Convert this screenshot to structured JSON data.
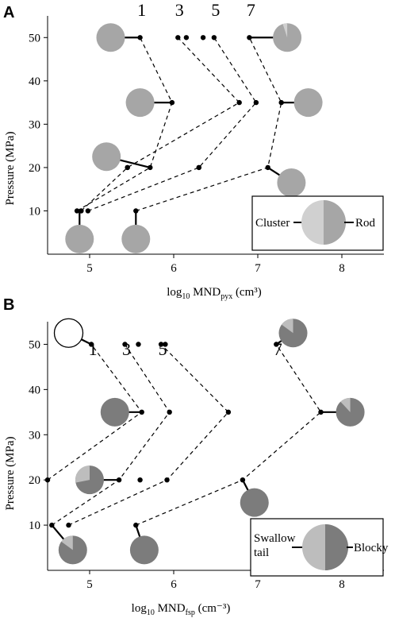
{
  "colors": {
    "rod": "#a6a6a6",
    "cluster": "#d0d0d0",
    "blocky": "#7c7c7c",
    "swallow": "#bdbdbd",
    "axis": "#000000"
  },
  "chart_data": [
    {
      "panel": "A",
      "type": "scatter",
      "xlabel": {
        "main": "log",
        "sub1": "10",
        "mid": " MND",
        "sub2": "pyx",
        "tail": " (cm³)"
      },
      "ylabel": "Pressure (MPa)",
      "xlim": [
        4.5,
        8.5
      ],
      "ylim": [
        0,
        55
      ],
      "xticks": [
        "5",
        "6",
        "7",
        "8"
      ],
      "yticks": [
        "10",
        "20",
        "30",
        "40",
        "50"
      ],
      "series": [
        {
          "name": "1",
          "points": [
            {
              "x": 4.85,
              "y": 10
            },
            {
              "x": 5.72,
              "y": 20
            },
            {
              "x": 5.98,
              "y": 35
            },
            {
              "x": 5.6,
              "y": 50
            }
          ]
        },
        {
          "name": "3",
          "points": [
            {
              "x": 4.9,
              "y": 10
            },
            {
              "x": 5.45,
              "y": 20
            },
            {
              "x": 6.78,
              "y": 35
            },
            {
              "x": 6.05,
              "y": 50
            }
          ]
        },
        {
          "name": "5",
          "points": [
            {
              "x": 4.98,
              "y": 10
            },
            {
              "x": 6.3,
              "y": 20
            },
            {
              "x": 6.98,
              "y": 35
            },
            {
              "x": 6.48,
              "y": 50
            }
          ]
        },
        {
          "name": "7",
          "points": [
            {
              "x": 5.55,
              "y": 10
            },
            {
              "x": 7.12,
              "y": 20
            },
            {
              "x": 7.28,
              "y": 35
            },
            {
              "x": 6.9,
              "y": 50
            }
          ]
        }
      ],
      "extra_points": [
        {
          "x": 5.45,
          "y": 20
        },
        {
          "x": 6.3,
          "y": 20
        },
        {
          "x": 6.15,
          "y": 50
        },
        {
          "x": 6.35,
          "y": 50
        }
      ],
      "pies": [
        {
          "x": 5.25,
          "y": 50,
          "attach": {
            "x": 5.6,
            "y": 50
          },
          "minor_fraction": 0
        },
        {
          "x": 5.6,
          "y": 35,
          "attach": {
            "x": 5.98,
            "y": 35
          },
          "minor_fraction": 0
        },
        {
          "x": 5.2,
          "y": 22.5,
          "attach": {
            "x": 5.72,
            "y": 20
          },
          "minor_fraction": 0
        },
        {
          "x": 4.88,
          "y": 3.5,
          "attach": {
            "x": 4.88,
            "y": 10
          },
          "minor_fraction": 0
        },
        {
          "x": 5.55,
          "y": 3.5,
          "attach": {
            "x": 5.55,
            "y": 10
          },
          "minor_fraction": 0
        },
        {
          "x": 7.35,
          "y": 50,
          "attach": {
            "x": 6.9,
            "y": 50
          },
          "minor_fraction": 0.05
        },
        {
          "x": 7.6,
          "y": 35,
          "attach": {
            "x": 7.28,
            "y": 35
          },
          "minor_fraction": 0
        },
        {
          "x": 7.4,
          "y": 16.5,
          "attach": {
            "x": 7.12,
            "y": 20
          },
          "minor_fraction": 0
        }
      ],
      "legend": {
        "left": "Cluster",
        "right": "Rod",
        "placement": "bottom-right"
      }
    },
    {
      "panel": "B",
      "type": "scatter",
      "xlabel": {
        "main": "log",
        "sub1": "10",
        "mid": " MND",
        "sub2": "fsp",
        "tail": " (cm⁻³)"
      },
      "ylabel": "Pressure (MPa)",
      "xlim": [
        4.5,
        8.5
      ],
      "ylim": [
        0,
        55
      ],
      "xticks": [
        "5",
        "6",
        "7",
        "8"
      ],
      "yticks": [
        "10",
        "20",
        "30",
        "40",
        "50"
      ],
      "series": [
        {
          "name": "1",
          "points": [
            {
              "x": 4.5,
              "y": 20
            },
            {
              "x": 5.62,
              "y": 35
            },
            {
              "x": 5.02,
              "y": 50
            }
          ]
        },
        {
          "name": "3",
          "points": [
            {
              "x": 4.55,
              "y": 10
            },
            {
              "x": 5.35,
              "y": 20
            },
            {
              "x": 5.95,
              "y": 35
            },
            {
              "x": 5.42,
              "y": 50
            }
          ]
        },
        {
          "name": "5",
          "points": [
            {
              "x": 4.75,
              "y": 10
            },
            {
              "x": 5.92,
              "y": 20
            },
            {
              "x": 6.65,
              "y": 35
            },
            {
              "x": 5.85,
              "y": 50
            }
          ]
        },
        {
          "name": "7",
          "points": [
            {
              "x": 5.55,
              "y": 10
            },
            {
              "x": 6.82,
              "y": 20
            },
            {
              "x": 7.75,
              "y": 35
            },
            {
              "x": 7.22,
              "y": 50
            }
          ]
        }
      ],
      "extra_points": [
        {
          "x": 5.6,
          "y": 20
        },
        {
          "x": 5.58,
          "y": 50
        },
        {
          "x": 5.9,
          "y": 50
        }
      ],
      "pies": [
        {
          "x": 4.75,
          "y": 52.5,
          "attach": {
            "x": 5.02,
            "y": 50
          },
          "minor_fraction": 0,
          "hollow": true
        },
        {
          "x": 5.3,
          "y": 35,
          "attach": {
            "x": 5.62,
            "y": 35
          },
          "minor_fraction": 0
        },
        {
          "x": 5.0,
          "y": 20,
          "attach": {
            "x": 5.35,
            "y": 20
          },
          "minor_fraction": 0.28
        },
        {
          "x": 4.8,
          "y": 4.5,
          "attach": {
            "x": 4.55,
            "y": 10
          },
          "minor_fraction": 0.15
        },
        {
          "x": 5.65,
          "y": 4.5,
          "attach": {
            "x": 5.55,
            "y": 10
          },
          "minor_fraction": 0
        },
        {
          "x": 7.42,
          "y": 52.5,
          "attach": {
            "x": 7.22,
            "y": 50
          },
          "minor_fraction": 0.15
        },
        {
          "x": 8.1,
          "y": 35,
          "attach": {
            "x": 7.75,
            "y": 35
          },
          "minor_fraction": 0.12
        },
        {
          "x": 6.96,
          "y": 15,
          "attach": {
            "x": 6.82,
            "y": 20
          },
          "minor_fraction": 0
        }
      ],
      "legend": {
        "left": "Swallow\ntail",
        "right": "Blocky",
        "placement": "bottom-right"
      }
    }
  ]
}
